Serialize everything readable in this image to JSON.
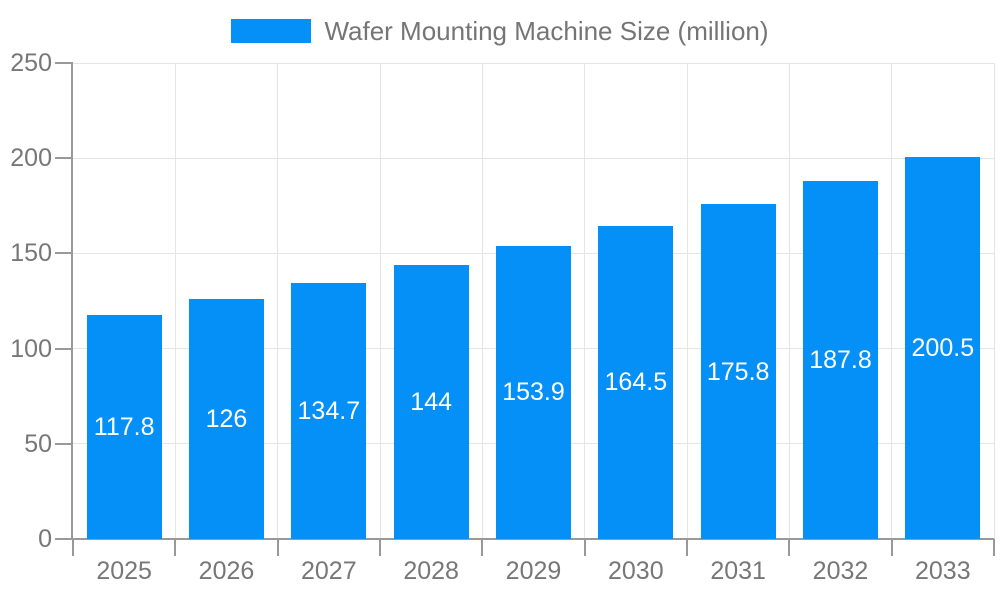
{
  "chart_data": {
    "type": "bar",
    "title": "Wafer Mounting Machine Size (million)",
    "legend": [
      "Wafer Mounting Machine Size (million)"
    ],
    "legend_position": "top-center",
    "categories": [
      "2025",
      "2026",
      "2027",
      "2028",
      "2029",
      "2030",
      "2031",
      "2032",
      "2033"
    ],
    "series": [
      {
        "name": "Wafer Mounting Machine Size (million)",
        "values": [
          117.8,
          126,
          134.7,
          144,
          153.9,
          164.5,
          175.8,
          187.8,
          200.5
        ]
      }
    ],
    "value_labels": [
      "117.8",
      "126",
      "134.7",
      "144",
      "153.9",
      "164.5",
      "175.8",
      "187.8",
      "200.5"
    ],
    "xlabel": "",
    "ylabel": "",
    "ylim": [
      0,
      250
    ],
    "yticks": [
      0,
      50,
      100,
      150,
      200,
      250
    ],
    "grid": true,
    "colors": {
      "bar": "#0590f8",
      "value_label_text": "#ffffff",
      "axis_label_text": "#777777",
      "legend_text": "#757575",
      "axis_line": "#999999",
      "gridline": "#e5e5e5",
      "background": "#ffffff"
    }
  }
}
